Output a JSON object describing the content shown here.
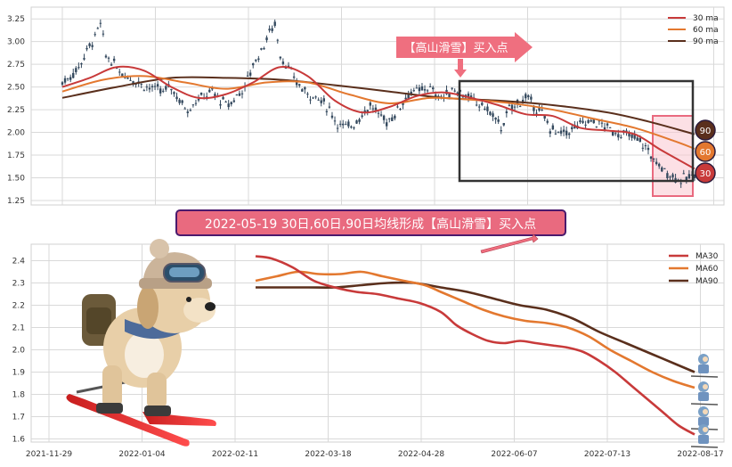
{
  "colors": {
    "ma30": "#c83a3a",
    "ma60": "#e3782f",
    "ma90": "#5a2f1c",
    "candle": "#34495e",
    "grid": "#d9d9d9",
    "panel_bg": "#ffffff",
    "banner_fill": "#e96a7f",
    "banner_border": "#4b1a6d",
    "arrow_banner": "#ef6f7f",
    "box_border": "#333333",
    "highlight_fill": "#f9c6d0"
  },
  "top_banner": {
    "text": "【高山滑雪】买入点"
  },
  "mid_banner": {
    "text": "2022-05-19 30日,60日,90日均线形成【高山滑雪】买入点"
  },
  "badges": [
    {
      "text": "90",
      "color": "#5a2f1c"
    },
    {
      "text": "60",
      "color": "#e3782f"
    },
    {
      "text": "30",
      "color": "#c83a3a"
    }
  ],
  "chart_data": [
    {
      "type": "line",
      "panel": "top",
      "yticks": [
        "1.25",
        "1.50",
        "1.75",
        "2.00",
        "2.25",
        "2.50",
        "2.75",
        "3.00",
        "3.25"
      ],
      "ylim": [
        1.22,
        3.36
      ],
      "legend_position": "top-right",
      "legend": [
        {
          "name": "30 ma",
          "color": "#c83a3a"
        },
        {
          "name": "60 ma",
          "color": "#e3782f"
        },
        {
          "name": "90 ma",
          "color": "#5a2f1c"
        }
      ],
      "price_points": [
        [
          0,
          2.55
        ],
        [
          3,
          2.62
        ],
        [
          6,
          2.72
        ],
        [
          9,
          2.9
        ],
        [
          12,
          3.05
        ],
        [
          14,
          3.2
        ],
        [
          16,
          2.85
        ],
        [
          19,
          2.75
        ],
        [
          22,
          2.65
        ],
        [
          25,
          2.6
        ],
        [
          28,
          2.55
        ],
        [
          31,
          2.5
        ],
        [
          34,
          2.48
        ],
        [
          37,
          2.45
        ],
        [
          40,
          2.5
        ],
        [
          43,
          2.35
        ],
        [
          46,
          2.25
        ],
        [
          49,
          2.35
        ],
        [
          52,
          2.4
        ],
        [
          55,
          2.45
        ],
        [
          58,
          2.35
        ],
        [
          61,
          2.3
        ],
        [
          64,
          2.4
        ],
        [
          67,
          2.5
        ],
        [
          70,
          2.75
        ],
        [
          73,
          2.9
        ],
        [
          76,
          3.1
        ],
        [
          78,
          3.2
        ],
        [
          80,
          2.85
        ],
        [
          83,
          2.7
        ],
        [
          86,
          2.55
        ],
        [
          89,
          2.45
        ],
        [
          92,
          2.4
        ],
        [
          95,
          2.35
        ],
        [
          98,
          2.25
        ],
        [
          101,
          2.1
        ],
        [
          104,
          2.05
        ],
        [
          107,
          2.1
        ],
        [
          110,
          2.2
        ],
        [
          113,
          2.3
        ],
        [
          116,
          2.2
        ],
        [
          119,
          2.12
        ],
        [
          122,
          2.2
        ],
        [
          125,
          2.35
        ],
        [
          128,
          2.45
        ],
        [
          131,
          2.45
        ],
        [
          134,
          2.5
        ],
        [
          137,
          2.42
        ],
        [
          140,
          2.38
        ],
        [
          143,
          2.48
        ],
        [
          146,
          2.45
        ],
        [
          149,
          2.38
        ],
        [
          152,
          2.32
        ],
        [
          155,
          2.28
        ],
        [
          158,
          2.18
        ],
        [
          161,
          2.05
        ],
        [
          164,
          2.25
        ],
        [
          167,
          2.32
        ],
        [
          170,
          2.38
        ],
        [
          173,
          2.3
        ],
        [
          176,
          2.2
        ],
        [
          179,
          2.05
        ],
        [
          182,
          1.98
        ],
        [
          185,
          2.0
        ],
        [
          188,
          2.05
        ],
        [
          191,
          2.1
        ],
        [
          194,
          2.12
        ],
        [
          197,
          2.1
        ],
        [
          200,
          2.05
        ],
        [
          203,
          2.0
        ],
        [
          206,
          1.98
        ],
        [
          209,
          1.95
        ],
        [
          212,
          1.9
        ],
        [
          215,
          1.8
        ],
        [
          218,
          1.65
        ],
        [
          221,
          1.58
        ],
        [
          224,
          1.52
        ],
        [
          227,
          1.48
        ],
        [
          230,
          1.5
        ],
        [
          232,
          1.55
        ]
      ],
      "ma30_points": [
        [
          0,
          2.5
        ],
        [
          10,
          2.6
        ],
        [
          20,
          2.72
        ],
        [
          30,
          2.68
        ],
        [
          40,
          2.5
        ],
        [
          50,
          2.38
        ],
        [
          60,
          2.42
        ],
        [
          70,
          2.55
        ],
        [
          80,
          2.72
        ],
        [
          90,
          2.62
        ],
        [
          100,
          2.35
        ],
        [
          110,
          2.22
        ],
        [
          120,
          2.28
        ],
        [
          130,
          2.4
        ],
        [
          140,
          2.44
        ],
        [
          150,
          2.38
        ],
        [
          160,
          2.3
        ],
        [
          170,
          2.2
        ],
        [
          180,
          2.18
        ],
        [
          190,
          2.05
        ],
        [
          200,
          2.02
        ],
        [
          210,
          1.98
        ],
        [
          220,
          1.8
        ],
        [
          232,
          1.6
        ]
      ],
      "ma60_points": [
        [
          0,
          2.45
        ],
        [
          15,
          2.58
        ],
        [
          30,
          2.62
        ],
        [
          45,
          2.55
        ],
        [
          60,
          2.48
        ],
        [
          75,
          2.55
        ],
        [
          90,
          2.55
        ],
        [
          105,
          2.42
        ],
        [
          120,
          2.32
        ],
        [
          135,
          2.38
        ],
        [
          150,
          2.36
        ],
        [
          165,
          2.32
        ],
        [
          180,
          2.25
        ],
        [
          195,
          2.15
        ],
        [
          210,
          2.05
        ],
        [
          225,
          1.9
        ],
        [
          232,
          1.82
        ]
      ],
      "ma90_points": [
        [
          0,
          2.38
        ],
        [
          20,
          2.5
        ],
        [
          40,
          2.6
        ],
        [
          60,
          2.6
        ],
        [
          80,
          2.58
        ],
        [
          100,
          2.52
        ],
        [
          120,
          2.45
        ],
        [
          140,
          2.38
        ],
        [
          160,
          2.35
        ],
        [
          180,
          2.3
        ],
        [
          200,
          2.22
        ],
        [
          215,
          2.12
        ],
        [
          232,
          1.98
        ]
      ]
    },
    {
      "type": "line",
      "panel": "bottom",
      "yticks": [
        "1.6",
        "1.7",
        "1.8",
        "1.9",
        "2.0",
        "2.1",
        "2.2",
        "2.3",
        "2.4"
      ],
      "ylim": [
        1.59,
        2.45
      ],
      "xticks": [
        "2021-11-29",
        "2022-01-04",
        "2022-02-11",
        "2022-03-18",
        "2022-04-28",
        "2022-06-07",
        "2022-07-13",
        "2022-08-17"
      ],
      "legend_position": "top-right",
      "series": [
        {
          "name": "MA30",
          "color": "#c83a3a",
          "points": [
            [
              0,
              2.42
            ],
            [
              6,
              2.41
            ],
            [
              14,
              2.37
            ],
            [
              22,
              2.31
            ],
            [
              30,
              2.28
            ],
            [
              38,
              2.26
            ],
            [
              46,
              2.25
            ],
            [
              54,
              2.23
            ],
            [
              62,
              2.21
            ],
            [
              70,
              2.17
            ],
            [
              76,
              2.11
            ],
            [
              82,
              2.07
            ],
            [
              88,
              2.04
            ],
            [
              94,
              2.03
            ],
            [
              100,
              2.04
            ],
            [
              106,
              2.03
            ],
            [
              112,
              2.02
            ],
            [
              118,
              2.01
            ],
            [
              124,
              1.99
            ],
            [
              130,
              1.95
            ],
            [
              136,
              1.9
            ],
            [
              142,
              1.84
            ],
            [
              148,
              1.78
            ],
            [
              154,
              1.72
            ],
            [
              160,
              1.66
            ],
            [
              166,
              1.62
            ]
          ]
        },
        {
          "name": "MA60",
          "color": "#e3782f",
          "points": [
            [
              0,
              2.31
            ],
            [
              8,
              2.33
            ],
            [
              16,
              2.35
            ],
            [
              24,
              2.34
            ],
            [
              32,
              2.34
            ],
            [
              40,
              2.35
            ],
            [
              48,
              2.33
            ],
            [
              56,
              2.31
            ],
            [
              64,
              2.29
            ],
            [
              70,
              2.26
            ],
            [
              78,
              2.22
            ],
            [
              86,
              2.18
            ],
            [
              94,
              2.15
            ],
            [
              102,
              2.13
            ],
            [
              110,
              2.12
            ],
            [
              118,
              2.1
            ],
            [
              126,
              2.06
            ],
            [
              134,
              2.0
            ],
            [
              142,
              1.95
            ],
            [
              150,
              1.9
            ],
            [
              158,
              1.86
            ],
            [
              166,
              1.83
            ]
          ]
        },
        {
          "name": "MA90",
          "color": "#5a2f1c",
          "points": [
            [
              0,
              2.28
            ],
            [
              10,
              2.28
            ],
            [
              20,
              2.28
            ],
            [
              30,
              2.28
            ],
            [
              40,
              2.29
            ],
            [
              50,
              2.3
            ],
            [
              60,
              2.3
            ],
            [
              70,
              2.28
            ],
            [
              80,
              2.26
            ],
            [
              90,
              2.23
            ],
            [
              100,
              2.2
            ],
            [
              110,
              2.18
            ],
            [
              120,
              2.14
            ],
            [
              130,
              2.08
            ],
            [
              140,
              2.03
            ],
            [
              150,
              1.98
            ],
            [
              160,
              1.93
            ],
            [
              166,
              1.9
            ]
          ]
        }
      ]
    }
  ]
}
